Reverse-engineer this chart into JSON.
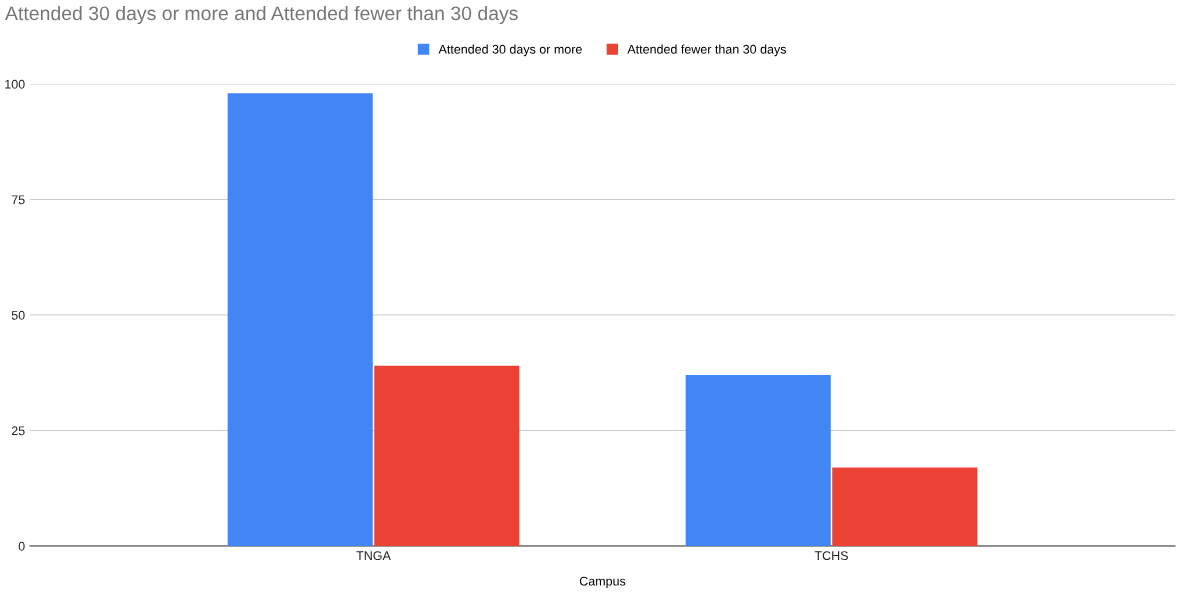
{
  "chart_data": {
    "type": "bar",
    "title": "Attended 30 days or more and Attended fewer than 30 days",
    "xlabel": "Campus",
    "categories": [
      "TNGA",
      "TCHS"
    ],
    "series": [
      {
        "name": "Attended 30 days or more",
        "color": "#4285f4",
        "values": [
          98,
          37
        ]
      },
      {
        "name": "Attended fewer than 30 days",
        "color": "#ea4335",
        "values": [
          39,
          17
        ]
      }
    ],
    "ylim": [
      0,
      100
    ],
    "yticks": [
      0,
      25,
      50,
      75,
      100
    ],
    "grid": "y",
    "legend": "top"
  }
}
